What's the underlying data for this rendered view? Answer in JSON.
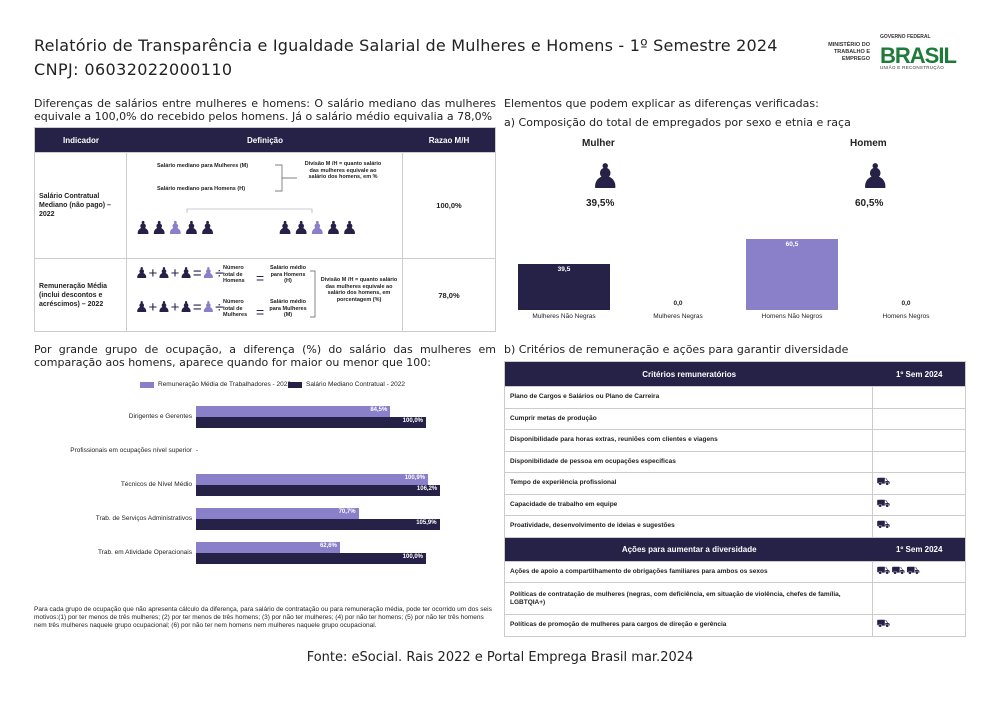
{
  "header": {
    "title": "Relatório de Transparência e Igualdade Salarial de Mulheres e Homens - 1º Semestre 2024",
    "cnpj": "CNPJ: 06032022000110",
    "ministry_logo": "MINISTÉRIO DO TRABALHO E EMPREGO",
    "gov_logo_top": "GOVERNO FEDERAL",
    "gov_logo_word": "BRASIL",
    "gov_logo_sub": "UNIÃO E RECONSTRUÇÃO"
  },
  "left_intro": "Diferenças de salários entre mulheres e homens: O salário mediano das mulheres equivale a 100,0% do recebido pelos homens. Já o salário médio equivalia a 78,0%",
  "salary_table": {
    "headers": [
      "Indicador",
      "Definição",
      "Razao M/H"
    ],
    "rows": [
      {
        "indicator": "Salário Contratual Mediano (não pago) – 2022",
        "def_women": "Salário mediano para Mulheres (M)",
        "def_men": "Salário mediano para Homens (H)",
        "def_division": "Divisão M /H = quanto salário das mulheres equivale ao salário dos homens, em %",
        "value": "100,0%"
      },
      {
        "indicator": "Remuneração Média (inclui descontos e acréscimos) – 2022",
        "def_total_men": "Número total de Homens",
        "def_total_women": "Número total de Mulheres",
        "def_avg_men": "Salário médio para Homens (H)",
        "def_avg_women": "Salário médio para Mulheres (M)",
        "def_division": "Divisão M /H = quanto salário das mulheres equivale ao salário dos homens, em porcentagem (%)",
        "value": "78,0%"
      }
    ]
  },
  "occupation_intro": "Por grande grupo de ocupação, a diferença (%) do salário das mulheres em comparação aos homens, aparece quando for maior ou menor que 100:",
  "chart_data": [
    {
      "type": "bar",
      "orientation": "horizontal",
      "categories": [
        "Dirigentes e Gerentes",
        "Profissionais em ocupações nível superior",
        "Técnicos de Nível Médio",
        "Trab. de Serviços Administrativos",
        "Trab. em Atividade Operacionais"
      ],
      "series": [
        {
          "name": "Remuneração Média de Trabalhadores - 2022",
          "color": "#8a7fc9",
          "values": [
            84.5,
            null,
            100.9,
            70.7,
            62.6
          ],
          "labels": [
            "84,5%",
            "",
            "100,9%",
            "70,7%",
            "62,6%"
          ]
        },
        {
          "name": "Salário Mediano Contratual - 2022",
          "color": "#262147",
          "values": [
            100.0,
            null,
            106.2,
            105.9,
            100.0
          ],
          "labels": [
            "100,0%",
            "",
            "106,2%",
            "105,9%",
            "100,0%"
          ]
        }
      ],
      "missing_marker": "-",
      "legend_position": "top"
    },
    {
      "type": "bar",
      "categories": [
        "Mulheres Não Negras",
        "Mulheres Negras",
        "Homens Não Negros",
        "Homens Negros"
      ],
      "values": [
        39.5,
        0.0,
        60.5,
        0.0
      ],
      "labels": [
        "39,5",
        "0,0",
        "60,5",
        "0,0"
      ],
      "colors": [
        "#262147",
        "#262147",
        "#8a7fc9",
        "#8a7fc9"
      ]
    }
  ],
  "footnote": "Para cada grupo de ocupação que não apresenta cálculo da diferença, para salário de contratação ou para remuneração média, pode ter ocorrido um dos seis motivos:(1) por ter menos de três mulheres; (2) por ter menos de três homens; (3) por não ter mulheres; (4) por não ter homens; (5) por não ter três homens nem três mulheres naquele grupo ocupacional; (6) por não ter nem homens nem mulheres naquele grupo ocupacional.",
  "right": {
    "title": "Elementos que podem explicar as diferenças verificadas:",
    "sub_a": "a) Composição do total de empregados por sexo e etnia e raça",
    "women_label": "Mulher",
    "women_pct": "39,5%",
    "men_label": "Homem",
    "men_pct": "60,5%",
    "sub_b": "b) Critérios de remuneração e ações para garantir diversidade"
  },
  "criteria_table": {
    "header_criteria": "Critérios remuneratórios",
    "header_sem": "1º Sem 2024",
    "criteria": [
      {
        "label": "Plano de Cargos e Salários ou Plano de Carreira",
        "icons": ""
      },
      {
        "label": "Cumprir metas de produção",
        "icons": ""
      },
      {
        "label": "Disponibilidade para horas extras, reuniões com clientes e viagens",
        "icons": ""
      },
      {
        "label": "Disponibilidade de pessoa em ocupações específicas",
        "icons": ""
      },
      {
        "label": "Tempo de experiência profissional",
        "icons": "⛟"
      },
      {
        "label": "Capacidade de trabalho em equipe",
        "icons": "⛟"
      },
      {
        "label": "Proatividade, desenvolvimento de ideias e sugestões",
        "icons": "⛟"
      }
    ],
    "header_actions": "Ações para aumentar a diversidade",
    "header_sem2": "1º Sem 2024",
    "actions": [
      {
        "label": "Ações de apoio a compartilhamento de obrigações familiares para ambos os sexos",
        "icons": "⛟⛟⛟"
      },
      {
        "label": "Políticas de contratação de mulheres (negras, com deficiência, em situação de violência, chefes de família, LGBTQIA+)",
        "icons": ""
      },
      {
        "label": "Políticas de promoção de mulheres para cargos de direção e gerência",
        "icons": "⛟"
      }
    ]
  },
  "source": "Fonte: eSocial. Rais 2022 e Portal Emprega Brasil mar.2024"
}
